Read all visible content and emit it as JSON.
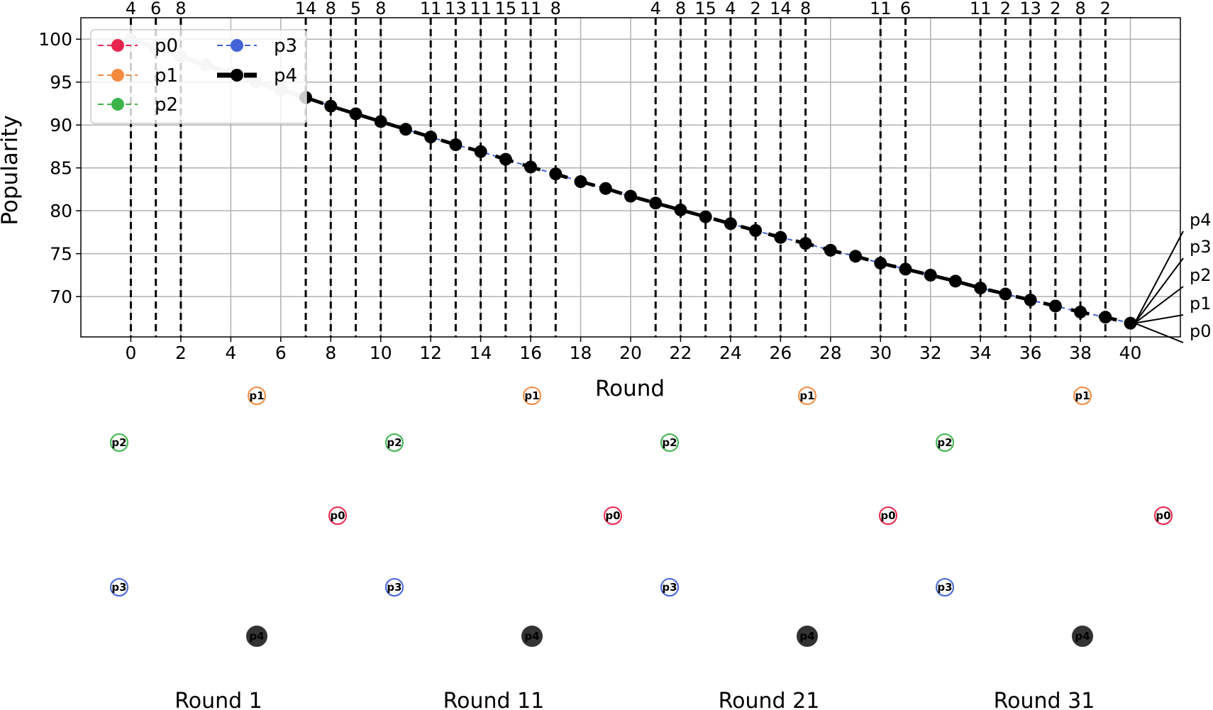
{
  "chart_data": {
    "type": "line",
    "xlabel": "Round",
    "ylabel": "Popularity",
    "xlim": [
      -2,
      42
    ],
    "ylim": [
      65.3,
      102.5
    ],
    "xticks": [
      0,
      2,
      4,
      6,
      8,
      10,
      12,
      14,
      16,
      18,
      20,
      22,
      24,
      26,
      28,
      30,
      32,
      34,
      36,
      38,
      40
    ],
    "yticks": [
      70,
      75,
      80,
      85,
      90,
      95,
      100
    ],
    "grid": true,
    "legend_location": "upper-left",
    "colors": {
      "p0": "#e8274f",
      "p1": "#f28a3f",
      "p2": "#3cb44b",
      "p3": "#4363d8",
      "p4": "#000000",
      "early_segment": "#d0d0d0",
      "node_p4_fill": "#333333"
    },
    "series": [
      {
        "name": "p0",
        "style": "dashed-marker"
      },
      {
        "name": "p1",
        "style": "dashed-marker"
      },
      {
        "name": "p2",
        "style": "dashed-marker"
      },
      {
        "name": "p3",
        "style": "dashed-marker"
      },
      {
        "name": "p4",
        "style": "thick-dashed-marker"
      }
    ],
    "x": [
      0,
      1,
      2,
      3,
      4,
      5,
      6,
      7,
      8,
      9,
      10,
      11,
      12,
      13,
      14,
      15,
      16,
      17,
      18,
      19,
      20,
      21,
      22,
      23,
      24,
      25,
      26,
      27,
      28,
      29,
      30,
      31,
      32,
      33,
      34,
      35,
      36,
      37,
      38,
      39,
      40
    ],
    "values": [
      100.0,
      99.0,
      98.0,
      97.0,
      96.0,
      95.0,
      94.1,
      93.2,
      92.2,
      91.3,
      90.4,
      89.5,
      88.6,
      87.7,
      86.9,
      86.0,
      85.1,
      84.3,
      83.4,
      82.6,
      81.7,
      80.9,
      80.1,
      79.3,
      78.5,
      77.7,
      76.9,
      76.2,
      75.4,
      74.7,
      73.9,
      73.2,
      72.5,
      71.8,
      71.0,
      70.3,
      69.6,
      68.9,
      68.2,
      67.6,
      66.9
    ],
    "markers": [
      {
        "x": 0,
        "label": "4"
      },
      {
        "x": 1,
        "label": "6"
      },
      {
        "x": 2,
        "label": "8"
      },
      {
        "x": 7,
        "label": "14"
      },
      {
        "x": 8,
        "label": "8"
      },
      {
        "x": 9,
        "label": "5"
      },
      {
        "x": 10,
        "label": "8"
      },
      {
        "x": 12,
        "label": "11"
      },
      {
        "x": 13,
        "label": "13"
      },
      {
        "x": 14,
        "label": "11"
      },
      {
        "x": 15,
        "label": "15"
      },
      {
        "x": 16,
        "label": "11"
      },
      {
        "x": 17,
        "label": "8"
      },
      {
        "x": 21,
        "label": "4"
      },
      {
        "x": 22,
        "label": "8"
      },
      {
        "x": 23,
        "label": "15"
      },
      {
        "x": 24,
        "label": "4"
      },
      {
        "x": 25,
        "label": "2"
      },
      {
        "x": 26,
        "label": "14"
      },
      {
        "x": 27,
        "label": "8"
      },
      {
        "x": 30,
        "label": "11"
      },
      {
        "x": 31,
        "label": "6"
      },
      {
        "x": 34,
        "label": "11"
      },
      {
        "x": 35,
        "label": "2"
      },
      {
        "x": 36,
        "label": "13"
      },
      {
        "x": 37,
        "label": "2"
      },
      {
        "x": 38,
        "label": "8"
      },
      {
        "x": 39,
        "label": "2"
      }
    ],
    "end_labels": [
      "p4",
      "p3",
      "p2",
      "p1",
      "p0"
    ]
  },
  "network": {
    "rounds": [
      "Round 1",
      "Round 11",
      "Round 21",
      "Round 31"
    ],
    "nodes": [
      "p0",
      "p1",
      "p2",
      "p3",
      "p4"
    ]
  }
}
